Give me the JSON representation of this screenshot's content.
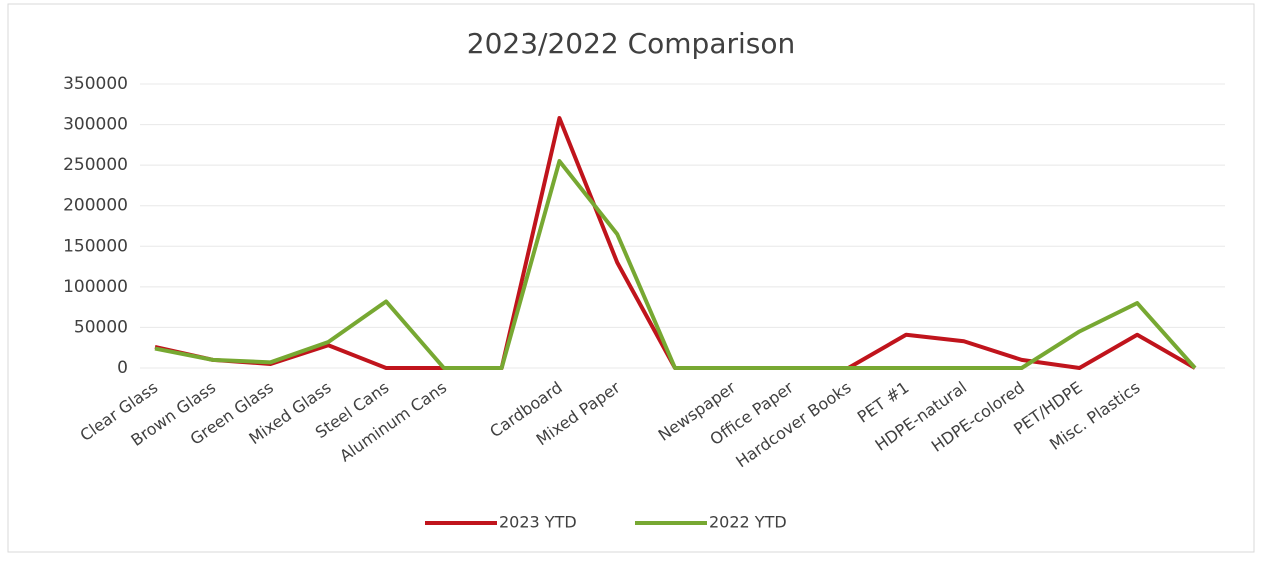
{
  "chart_data": {
    "type": "line",
    "title": "2023/2022 Comparison",
    "categories": [
      "Clear Glass",
      "Brown Glass",
      "Green Glass",
      "Mixed Glass",
      "Steel Cans",
      "Aluminum Cans",
      null,
      "Cardboard",
      "Mixed Paper",
      null,
      "Newspaper",
      "Office Paper",
      "Hardcover Books",
      "PET #1",
      "HDPE-natural",
      "HDPE-colored",
      "PET/HDPE",
      "Misc. Plastics",
      null
    ],
    "series": [
      {
        "name": "2023 YTD",
        "color": "#c0141c",
        "values": [
          26000,
          10000,
          5000,
          28000,
          0,
          0,
          0,
          308000,
          130000,
          0,
          0,
          0,
          0,
          41000,
          33000,
          10000,
          0,
          41000,
          0
        ]
      },
      {
        "name": "2022 YTD",
        "color": "#77a832",
        "values": [
          24000,
          10000,
          7000,
          32000,
          82000,
          0,
          0,
          255000,
          165000,
          0,
          0,
          0,
          0,
          0,
          0,
          0,
          45000,
          80000,
          0
        ]
      }
    ],
    "ylim": [
      0,
      350000
    ],
    "yticks": [
      0,
      50000,
      100000,
      150000,
      200000,
      250000,
      300000,
      350000
    ],
    "grid": true,
    "legend": "bottom"
  }
}
